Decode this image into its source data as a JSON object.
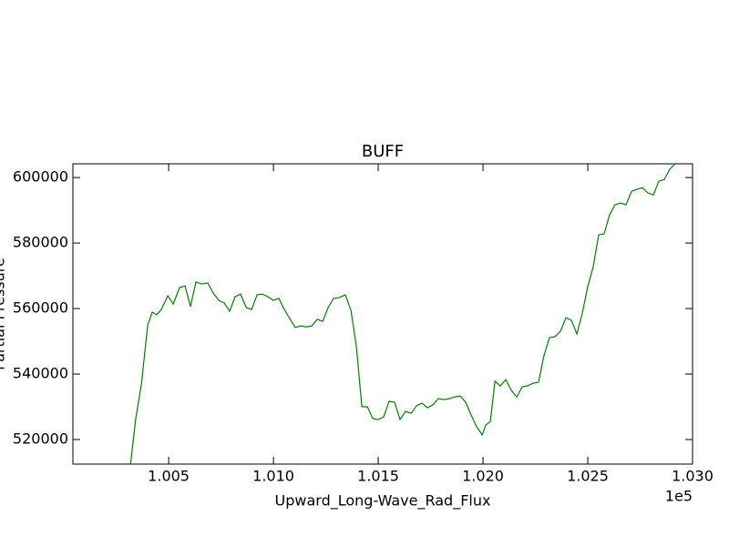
{
  "chart_data": {
    "type": "line",
    "title": "BUFF",
    "x_label": "Upward_Long-Wave_Rad_Flux",
    "y_label": "Partial Pressure",
    "x_offset_label": "1e5",
    "x": [
      100317,
      100343,
      100370,
      100400,
      100422,
      100443,
      100465,
      100496,
      100522,
      100552,
      100578,
      100604,
      100630,
      100657,
      100687,
      100713,
      100739,
      100765,
      100791,
      100817,
      100843,
      100870,
      100896,
      100922,
      100948,
      100974,
      101000,
      101026,
      101052,
      101078,
      101104,
      101130,
      101157,
      101183,
      101209,
      101235,
      101261,
      101287,
      101313,
      101343,
      101370,
      101396,
      101422,
      101448,
      101474,
      101500,
      101526,
      101552,
      101578,
      101604,
      101630,
      101657,
      101683,
      101709,
      101735,
      101761,
      101787,
      101813,
      101839,
      101865,
      101891,
      101917,
      101943,
      101970,
      101996,
      102013,
      102035,
      102057,
      102083,
      102109,
      102135,
      102161,
      102187,
      102213,
      102239,
      102265,
      102291,
      102317,
      102343,
      102370,
      102396,
      102422,
      102448,
      102474,
      102500,
      102526,
      102552,
      102578,
      102604,
      102630,
      102657,
      102683,
      102709,
      102735,
      102761,
      102787,
      102813,
      102839,
      102865,
      102891,
      102917
    ],
    "series": [
      {
        "color": "#008000",
        "values": [
          511900,
          526400,
          536900,
          555000,
          558900,
          558100,
          559700,
          563900,
          561400,
          566400,
          566900,
          560600,
          568100,
          567500,
          567800,
          564700,
          562500,
          561700,
          559200,
          563600,
          564400,
          560300,
          559700,
          564200,
          564400,
          563600,
          562500,
          563100,
          559700,
          556900,
          554200,
          554700,
          554400,
          554700,
          556700,
          556100,
          560300,
          563100,
          563300,
          564200,
          559400,
          548300,
          530000,
          530000,
          526400,
          526100,
          526900,
          531700,
          531400,
          526100,
          528600,
          528000,
          530300,
          531100,
          529700,
          530600,
          532500,
          532200,
          532500,
          533000,
          533300,
          531400,
          527500,
          523900,
          521400,
          524400,
          525500,
          537800,
          536400,
          538300,
          535000,
          533000,
          536100,
          536400,
          537200,
          537500,
          545600,
          551100,
          551400,
          553100,
          557200,
          556400,
          552200,
          558600,
          566700,
          572800,
          582500,
          582800,
          588600,
          591700,
          592200,
          591700,
          595800,
          596400,
          596900,
          595300,
          594700,
          598900,
          599400,
          602500,
          604200
        ]
      }
    ],
    "xlim": [
      100043,
      103000
    ],
    "ylim": [
      512500,
      604200
    ],
    "xticks": [
      {
        "value": 100500,
        "label": "1.005"
      },
      {
        "value": 101000,
        "label": "1.010"
      },
      {
        "value": 101500,
        "label": "1.015"
      },
      {
        "value": 102000,
        "label": "1.020"
      },
      {
        "value": 102500,
        "label": "1.025"
      },
      {
        "value": 103000,
        "label": "1.030"
      }
    ],
    "yticks": [
      520000,
      540000,
      560000,
      580000,
      600000
    ],
    "grid": false
  }
}
